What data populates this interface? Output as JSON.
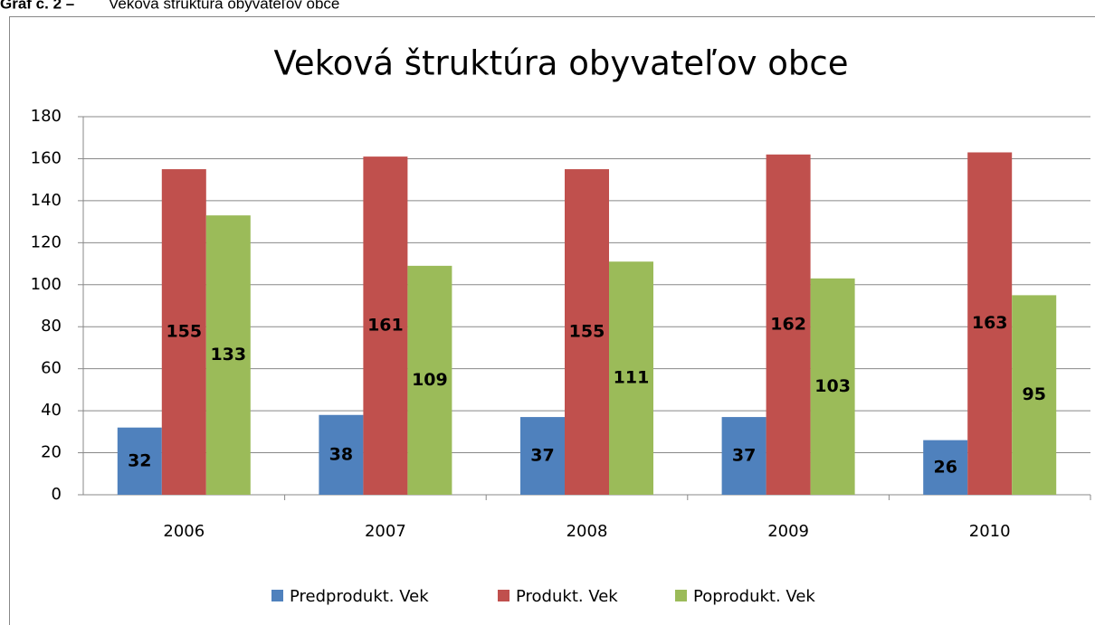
{
  "caption": {
    "label": "Graf č. 2 –",
    "text": "Veková štruktúra obyvateľov obce"
  },
  "chart_data": {
    "type": "bar",
    "title": "Veková štruktúra obyvateľov obce",
    "categories": [
      "2006",
      "2007",
      "2008",
      "2009",
      "2010"
    ],
    "series": [
      {
        "name": "Predprodukt. Vek",
        "color": "#4f81bd",
        "values": [
          32,
          38,
          37,
          37,
          26
        ]
      },
      {
        "name": "Produkt. Vek",
        "color": "#c0504d",
        "values": [
          155,
          161,
          155,
          162,
          163
        ]
      },
      {
        "name": "Poprodukt. Vek",
        "color": "#9bbb59",
        "values": [
          133,
          109,
          111,
          103,
          95
        ]
      }
    ],
    "ylim": [
      0,
      180
    ],
    "yticks": [
      0,
      20,
      40,
      60,
      80,
      100,
      120,
      140,
      160,
      180
    ],
    "grid": true,
    "legend": "bottom",
    "data_labels": true
  }
}
